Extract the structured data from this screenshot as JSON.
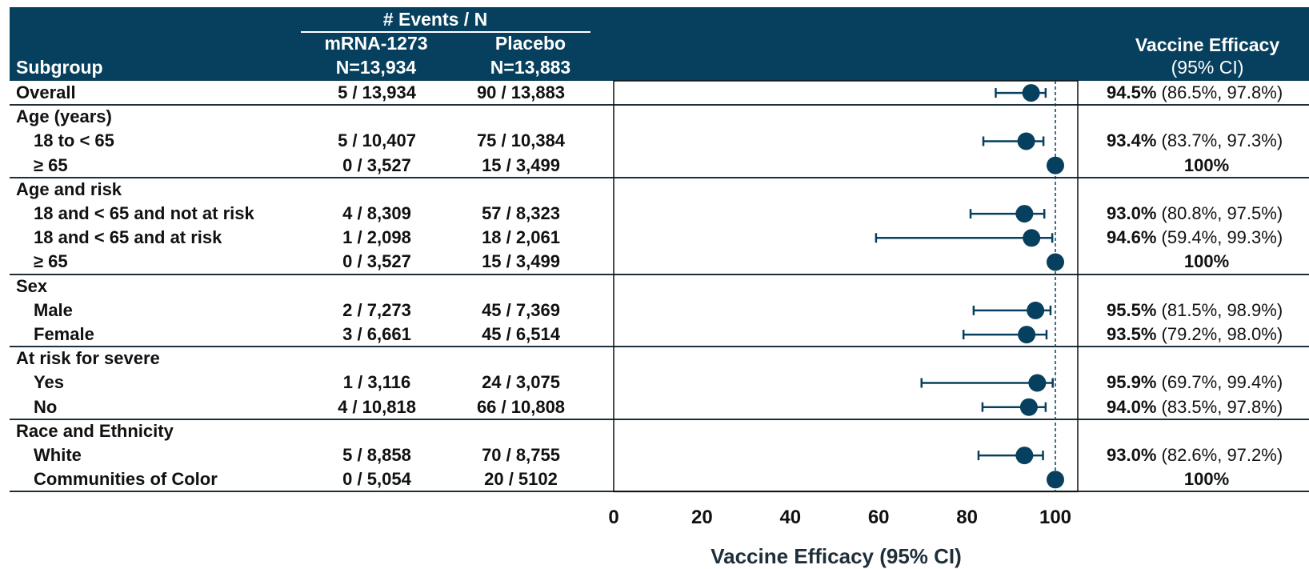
{
  "header": {
    "events_title": "# Events / N",
    "col1_name": "mRNA-1273",
    "col1_n": "N=13,934",
    "col2_name": "Placebo",
    "col2_n": "N=13,883",
    "subgroup_label": "Subgroup",
    "ve_title": "Vaccine Efficacy",
    "ve_sub": "(95% CI)"
  },
  "chart_data": {
    "type": "forest",
    "xlabel": "Vaccine Efficacy (95% CI)",
    "xlim": [
      0,
      105
    ],
    "xticks": [
      0,
      20,
      40,
      60,
      80,
      100
    ],
    "reference_line": 100,
    "marker_color": "#07405e",
    "rows": [
      {
        "label": "Overall",
        "kind": "group",
        "mrna": "5 / 13,934",
        "placebo": "90 / 13,883",
        "ve_text": "94.5%",
        "ci_text": "(86.5%, 97.8%)",
        "ve": 94.5,
        "lo": 86.5,
        "hi": 97.8,
        "sep_below": true
      },
      {
        "label": "Age (years)",
        "kind": "group"
      },
      {
        "label": "18 to < 65",
        "kind": "sub",
        "mrna": "5 / 10,407",
        "placebo": "75 / 10,384",
        "ve_text": "93.4%",
        "ci_text": "(83.7%, 97.3%)",
        "ve": 93.4,
        "lo": 83.7,
        "hi": 97.3
      },
      {
        "label": "≥ 65",
        "kind": "sub",
        "mrna": "0 / 3,527",
        "placebo": "15 / 3,499",
        "ve_text": "100%",
        "ci_text": "",
        "ve": 100,
        "sep_below": true
      },
      {
        "label": "Age and risk",
        "kind": "group"
      },
      {
        "label": "18 and < 65 and not at risk",
        "kind": "sub",
        "mrna": "4 / 8,309",
        "placebo": "57 / 8,323",
        "ve_text": "93.0%",
        "ci_text": "(80.8%, 97.5%)",
        "ve": 93.0,
        "lo": 80.8,
        "hi": 97.5
      },
      {
        "label": "18 and < 65 and at risk",
        "kind": "sub",
        "mrna": "1 / 2,098",
        "placebo": "18 / 2,061",
        "ve_text": "94.6%",
        "ci_text": "(59.4%, 99.3%)",
        "ve": 94.6,
        "lo": 59.4,
        "hi": 99.3
      },
      {
        "label": "≥ 65",
        "kind": "sub",
        "mrna": "0 / 3,527",
        "placebo": "15 / 3,499",
        "ve_text": "100%",
        "ci_text": "",
        "ve": 100,
        "sep_below": true
      },
      {
        "label": "Sex",
        "kind": "group"
      },
      {
        "label": "Male",
        "kind": "sub",
        "mrna": "2 / 7,273",
        "placebo": "45 / 7,369",
        "ve_text": "95.5%",
        "ci_text": "(81.5%, 98.9%)",
        "ve": 95.5,
        "lo": 81.5,
        "hi": 98.9
      },
      {
        "label": "Female",
        "kind": "sub",
        "mrna": "3 / 6,661",
        "placebo": "45 / 6,514",
        "ve_text": "93.5%",
        "ci_text": "(79.2%, 98.0%)",
        "ve": 93.5,
        "lo": 79.2,
        "hi": 98.0,
        "sep_below": true
      },
      {
        "label": "At risk for severe",
        "kind": "group"
      },
      {
        "label": "Yes",
        "kind": "sub",
        "mrna": "1 / 3,116",
        "placebo": "24 / 3,075",
        "ve_text": "95.9%",
        "ci_text": "(69.7%, 99.4%)",
        "ve": 95.9,
        "lo": 69.7,
        "hi": 99.4
      },
      {
        "label": "No",
        "kind": "sub",
        "mrna": "4 / 10,818",
        "placebo": "66 / 10,808",
        "ve_text": "94.0%",
        "ci_text": "(83.5%, 97.8%)",
        "ve": 94.0,
        "lo": 83.5,
        "hi": 97.8,
        "sep_below": true
      },
      {
        "label": "Race and Ethnicity",
        "kind": "group"
      },
      {
        "label": "White",
        "kind": "sub",
        "mrna": "5 / 8,858",
        "placebo": "70 / 8,755",
        "ve_text": "93.0%",
        "ci_text": "(82.6%, 97.2%)",
        "ve": 93.0,
        "lo": 82.6,
        "hi": 97.2
      },
      {
        "label": "Communities of Color",
        "kind": "sub",
        "mrna": "0 / 5,054",
        "placebo": "20 / 5102",
        "ve_text": "100%",
        "ci_text": "",
        "ve": 100,
        "sep_below": true
      }
    ]
  }
}
